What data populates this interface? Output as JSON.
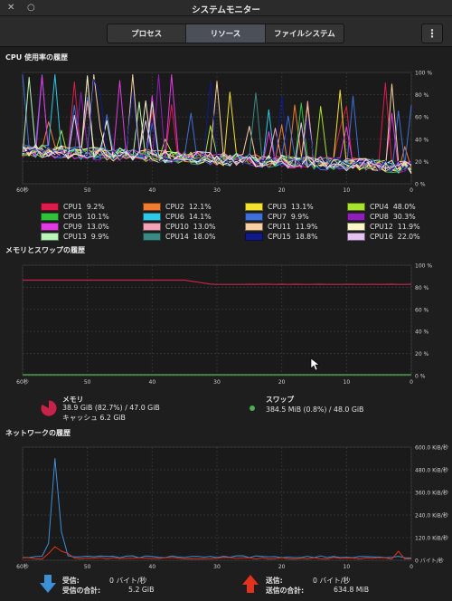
{
  "window": {
    "title": "システムモニター",
    "menu_icon": "kebab-menu-icon"
  },
  "tabs": [
    {
      "label": "プロセス",
      "active": false
    },
    {
      "label": "リソース",
      "active": true
    },
    {
      "label": "ファイルシステム",
      "active": false
    }
  ],
  "cpu": {
    "title": "CPU 使用率の履歴",
    "y_ticks": [
      "100 %",
      "80 %",
      "60 %",
      "40 %",
      "20 %",
      "0 %"
    ],
    "x_ticks": [
      "60秒",
      "50",
      "40",
      "30",
      "20",
      "10",
      "0"
    ],
    "legend": [
      {
        "label": "CPU1",
        "value": "9.2%",
        "color": "#e01b4c"
      },
      {
        "label": "CPU2",
        "value": "12.1%",
        "color": "#f07b2e"
      },
      {
        "label": "CPU3",
        "value": "13.1%",
        "color": "#f5e12d"
      },
      {
        "label": "CPU4",
        "value": "48.0%",
        "color": "#a6e22e"
      },
      {
        "label": "CPU5",
        "value": "10.1%",
        "color": "#2fc13a"
      },
      {
        "label": "CPU6",
        "value": "14.1%",
        "color": "#2ec8e8"
      },
      {
        "label": "CPU7",
        "value": "9.9%",
        "color": "#3f6fd9"
      },
      {
        "label": "CPU8",
        "value": "30.3%",
        "color": "#8e1fb8"
      },
      {
        "label": "CPU9",
        "value": "13.0%",
        "color": "#e43ae6"
      },
      {
        "label": "CPU10",
        "value": "13.0%",
        "color": "#f3a3b5"
      },
      {
        "label": "CPU11",
        "value": "11.9%",
        "color": "#f7cfa3"
      },
      {
        "label": "CPU12",
        "value": "11.9%",
        "color": "#fbf6c8"
      },
      {
        "label": "CPU13",
        "value": "9.9%",
        "color": "#b9f5b9"
      },
      {
        "label": "CPU14",
        "value": "18.0%",
        "color": "#3a8a86"
      },
      {
        "label": "CPU15",
        "value": "18.8%",
        "color": "#101a8a"
      },
      {
        "label": "CPU16",
        "value": "22.0%",
        "color": "#e5c2f2"
      }
    ]
  },
  "memory": {
    "title": "メモリとスワップの履歴",
    "y_ticks": [
      "100 %",
      "80 %",
      "60 %",
      "40 %",
      "20 %",
      "0 %"
    ],
    "x_ticks": [
      "60秒",
      "50",
      "40",
      "30",
      "20",
      "10",
      "0"
    ],
    "mem_label": "メモリ",
    "mem_usage": "38.9 GiB (82.7%) / 47.0 GiB",
    "cache": "キャッシュ 6.2 GiB",
    "mem_color": "#c4244a",
    "mem_fraction": 0.827,
    "swap_label": "スワップ",
    "swap_usage": "384.5 MiB (0.8%) / 48.0 GiB",
    "swap_color": "#4caf50",
    "swap_fraction": 0.008
  },
  "network": {
    "title": "ネットワークの履歴",
    "y_ticks": [
      "600.0 KiB/秒",
      "480.0 KiB/秒",
      "360.0 KiB/秒",
      "240.0 KiB/秒",
      "120.0 KiB/秒",
      "0 バイト/秒"
    ],
    "x_ticks": [
      "60秒",
      "50",
      "40",
      "30",
      "20",
      "10",
      "0"
    ],
    "recv_label": "受信:",
    "recv_value": "0 バイト/秒",
    "recv_total_label": "受信の合計:",
    "recv_total": "5.2 GiB",
    "send_label": "送信:",
    "send_value": "0 バイト/秒",
    "send_total_label": "送信の合計:",
    "send_total": "634.8 MiB",
    "recv_color": "#3d8fd6",
    "send_color": "#e0321c"
  }
}
